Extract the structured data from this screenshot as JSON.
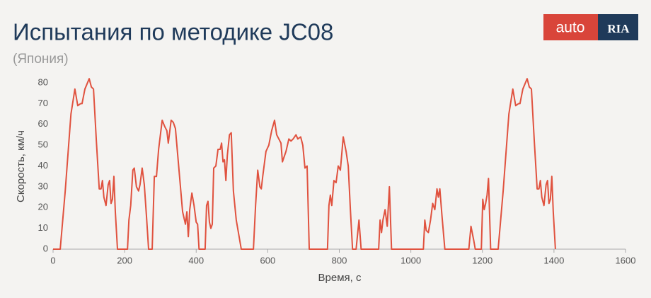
{
  "chart_data": {
    "type": "line",
    "title": "Испытания по методике JC08",
    "subtitle": "(Япония)",
    "logo": {
      "left": "auto",
      "right": "RIA"
    },
    "x_label": "Время, с",
    "y_label": "Скорость, км/ч",
    "xlim": [
      0,
      1600
    ],
    "ylim": [
      0,
      80
    ],
    "xticks": [
      0,
      200,
      400,
      600,
      800,
      1000,
      1200,
      1400,
      1600
    ],
    "yticks": [
      0,
      10,
      20,
      30,
      40,
      50,
      60,
      70,
      80
    ],
    "series": [
      {
        "name": "JC08",
        "color": "#e0523f",
        "x": [
          0,
          20,
          34,
          50,
          61,
          69,
          77,
          81,
          89,
          101,
          107,
          113,
          121,
          129,
          134,
          138,
          142,
          148,
          154,
          158,
          162,
          166,
          170,
          174,
          180,
          208,
          212,
          217,
          223,
          227,
          233,
          239,
          243,
          249,
          255,
          261,
          267,
          277,
          283,
          289,
          295,
          305,
          312,
          318,
          322,
          330,
          336,
          342,
          352,
          362,
          370,
          374,
          378,
          382,
          388,
          394,
          400,
          404,
          408,
          425,
          429,
          433,
          437,
          441,
          445,
          449,
          455,
          461,
          467,
          471,
          475,
          479,
          483,
          487,
          493,
          498,
          504,
          512,
          526,
          560,
          566,
          572,
          578,
          582,
          586,
          595,
          603,
          611,
          619,
          625,
          631,
          637,
          641,
          645,
          651,
          659,
          665,
          671,
          679,
          684,
          692,
          698,
          704,
          710,
          716,
          767,
          771,
          775,
          779,
          785,
          791,
          797,
          803,
          811,
          819,
          825,
          831,
          837,
          847,
          855,
          861,
          910,
          914,
          918,
          922,
          928,
          934,
          940,
          946,
          1035,
          1039,
          1043,
          1049,
          1055,
          1061,
          1067,
          1073,
          1077,
          1081,
          1087,
          1095,
          1162,
          1168,
          1176,
          1180,
          1197,
          1201,
          1205,
          1209,
          1213,
          1217,
          1223,
          1244,
          1258,
          1274,
          1285,
          1293,
          1301,
          1305,
          1313,
          1325,
          1331,
          1337,
          1345,
          1353,
          1358,
          1362,
          1366,
          1372,
          1378,
          1382,
          1386,
          1390,
          1394,
          1398,
          1404
        ],
        "values": [
          0,
          0,
          28,
          65,
          77,
          69,
          70,
          70,
          77,
          82,
          78,
          77,
          52,
          29,
          29,
          33,
          25,
          21,
          31,
          33,
          22,
          24,
          35,
          18,
          0,
          0,
          14,
          21,
          38,
          39,
          30,
          28,
          31,
          39,
          31,
          16,
          0,
          0,
          35,
          35,
          48,
          62,
          59,
          57,
          51,
          62,
          61,
          58,
          38,
          18,
          12,
          18,
          6,
          19,
          27,
          21,
          13,
          12,
          0,
          0,
          21,
          23,
          13,
          10,
          12,
          39,
          40,
          48,
          48,
          51,
          42,
          43,
          33,
          45,
          55,
          56,
          28,
          14,
          0,
          0,
          21,
          38,
          30,
          29,
          35,
          47,
          50,
          57,
          62,
          55,
          53,
          51,
          42,
          44,
          47,
          53,
          52,
          53,
          55,
          53,
          54,
          50,
          39,
          40,
          0,
          0,
          21,
          26,
          21,
          33,
          32,
          40,
          38,
          54,
          47,
          40,
          19,
          0,
          0,
          14,
          0,
          0,
          14,
          8,
          14,
          19,
          11,
          30,
          0,
          0,
          14,
          9,
          8,
          14,
          22,
          19,
          29,
          25,
          29,
          16,
          0,
          0,
          11,
          4,
          0,
          0,
          24,
          19,
          22,
          26,
          34,
          0,
          0,
          28,
          65,
          77,
          69,
          70,
          70,
          77,
          82,
          78,
          77,
          52,
          29,
          29,
          33,
          25,
          21,
          31,
          33,
          22,
          24,
          35,
          18,
          0
        ]
      }
    ]
  }
}
